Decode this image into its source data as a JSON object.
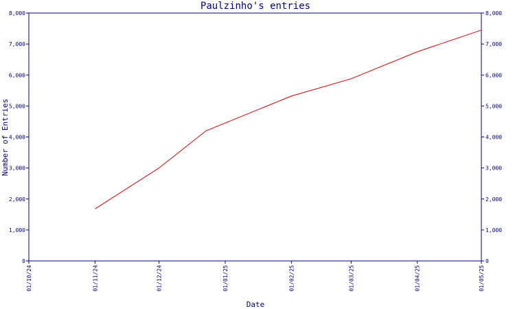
{
  "chart_data": {
    "type": "line",
    "title": "Paulzinho's entries",
    "xlabel": "Date",
    "ylabel": "Number of Entries",
    "x_ticks": [
      "01/10/24",
      "01/11/24",
      "01/12/24",
      "01/01/25",
      "01/02/25",
      "01/03/25",
      "01/04/25",
      "01/05/25"
    ],
    "y_ticks": [
      "0",
      "1,000",
      "2,000",
      "3,000",
      "4,000",
      "5,000",
      "6,000",
      "7,000",
      "8,000"
    ],
    "xlim": [
      "2024-10-01",
      "2025-05-01"
    ],
    "ylim": [
      0,
      8000
    ],
    "grid": false,
    "legend": "none",
    "series": [
      {
        "color": "#dd0000",
        "points": [
          {
            "x": "2024-11-01",
            "y": 1680
          },
          {
            "x": "2024-12-01",
            "y": 3000
          },
          {
            "x": "2024-12-23",
            "y": 4200
          },
          {
            "x": "2025-02-01",
            "y": 5320
          },
          {
            "x": "2025-03-01",
            "y": 5880
          },
          {
            "x": "2025-04-01",
            "y": 6750
          },
          {
            "x": "2025-05-01",
            "y": 7450
          }
        ]
      }
    ]
  },
  "colors": {
    "axis": "#000080",
    "text": "#000080",
    "background": "#ffffff"
  }
}
